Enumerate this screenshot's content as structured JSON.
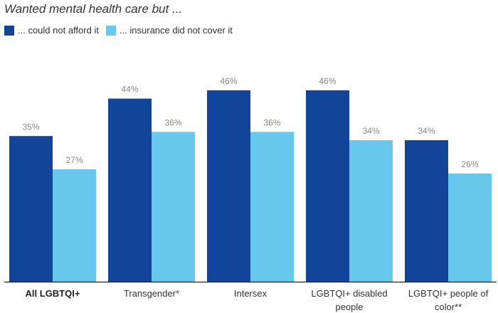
{
  "chart_data": {
    "type": "bar",
    "title": "Wanted mental health care but ...",
    "categories": [
      {
        "lines": [
          "All LGBTQI+"
        ],
        "bold": true
      },
      {
        "lines": [
          "Transgender*"
        ],
        "bold": false
      },
      {
        "lines": [
          "Intersex"
        ],
        "bold": false
      },
      {
        "lines": [
          "LGBTQI+ disabled",
          "people"
        ],
        "bold": false
      },
      {
        "lines": [
          "LGBTQI+ people of",
          "color**"
        ],
        "bold": false
      }
    ],
    "series": [
      {
        "name": "... could not afford it",
        "color": "#12449a",
        "values": [
          35,
          44,
          46,
          46,
          34
        ]
      },
      {
        "name": "... insurance did not cover it",
        "color": "#67c7ec",
        "values": [
          27,
          36,
          36,
          34,
          26
        ]
      }
    ],
    "value_suffix": "%",
    "ylim": [
      0,
      55
    ],
    "grid": false,
    "legend_position": "top-left"
  }
}
